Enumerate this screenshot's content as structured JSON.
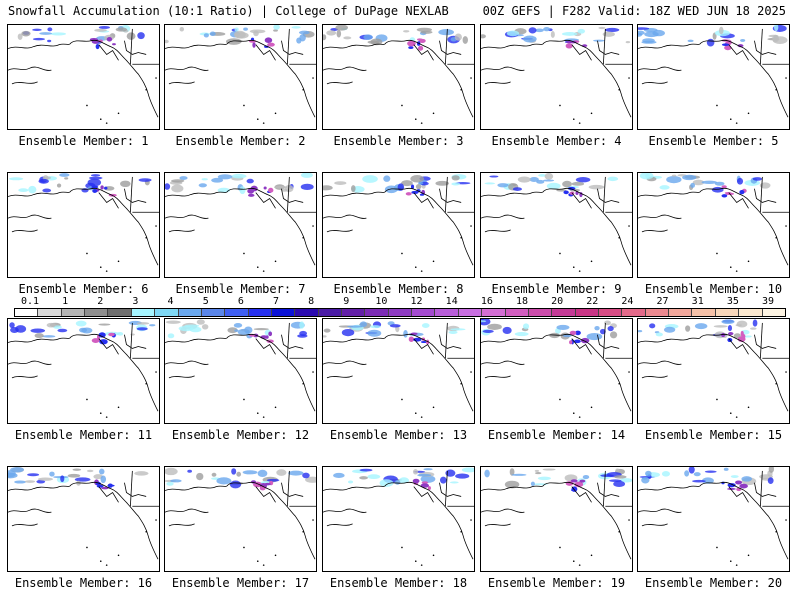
{
  "header": {
    "left": "Snowfall Accumulation (10:1 Ratio) | College of DuPage NEXLAB",
    "right": "00Z GEFS | F282 Valid: 18Z WED JUN 18 2025"
  },
  "colorbar": {
    "ticks": [
      "0.1",
      "1",
      "2",
      "3",
      "4",
      "5",
      "6",
      "7",
      "8",
      "9",
      "10",
      "12",
      "14",
      "16",
      "18",
      "20",
      "22",
      "24",
      "27",
      "31",
      "35",
      "39"
    ],
    "colors": [
      "#ffffff",
      "#d9d9d9",
      "#b5b5b5",
      "#8f8f8f",
      "#6e6e6e",
      "#a6f5ff",
      "#7fd8f5",
      "#6aa8ee",
      "#5a86ea",
      "#3f5ff2",
      "#2630f0",
      "#0a12d8",
      "#2a0ab0",
      "#4a1ba6",
      "#6320a8",
      "#7b2bb5",
      "#8e3bc3",
      "#a44bd0",
      "#b85ed9",
      "#c86ee0",
      "#d46fd4",
      "#d25ec0",
      "#cc4cab",
      "#c43a96",
      "#c93586",
      "#d84c85",
      "#e36a8a",
      "#ec8a90",
      "#f1a79b",
      "#f5c1a8",
      "#f8d7bb",
      "#fbe8cf",
      "#fdf4e3"
    ]
  },
  "panels": [
    {
      "label": "Ensemble Member: 1"
    },
    {
      "label": "Ensemble Member: 2"
    },
    {
      "label": "Ensemble Member: 3"
    },
    {
      "label": "Ensemble Member: 4"
    },
    {
      "label": "Ensemble Member: 5"
    },
    {
      "label": "Ensemble Member: 6"
    },
    {
      "label": "Ensemble Member: 7"
    },
    {
      "label": "Ensemble Member: 8"
    },
    {
      "label": "Ensemble Member: 9"
    },
    {
      "label": "Ensemble Member: 10"
    },
    {
      "label": "Ensemble Member: 11"
    },
    {
      "label": "Ensemble Member: 12"
    },
    {
      "label": "Ensemble Member: 13"
    },
    {
      "label": "Ensemble Member: 14"
    },
    {
      "label": "Ensemble Member: 15"
    },
    {
      "label": "Ensemble Member: 16"
    },
    {
      "label": "Ensemble Member: 17"
    },
    {
      "label": "Ensemble Member: 18"
    },
    {
      "label": "Ensemble Member: 19"
    },
    {
      "label": "Ensemble Member: 20"
    }
  ]
}
